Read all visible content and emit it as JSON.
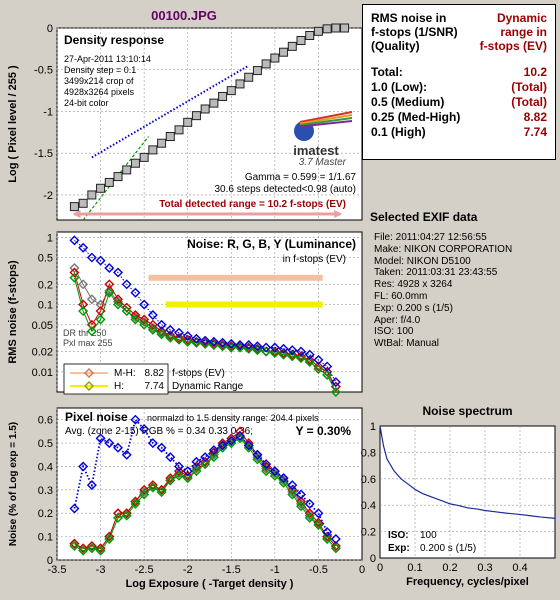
{
  "title": "00100.JPG",
  "summary": {
    "head_left": [
      "RMS noise in",
      "f-stops (1/SNR)",
      "(Quality)"
    ],
    "head_right": [
      "Dynamic",
      "range in",
      "f-stops (EV)"
    ],
    "rows": [
      {
        "label": "Total:",
        "value": "10.2"
      },
      {
        "label": "1.0  (Low):",
        "value": "(Total)"
      },
      {
        "label": "0.5  (Medium)",
        "value": "(Total)"
      },
      {
        "label": "0.25 (Med-High)",
        "value": "8.82"
      },
      {
        "label": "0.1  (High)",
        "value": "7.74"
      }
    ]
  },
  "exif": {
    "title": "Selected EXIF data",
    "lines": [
      "File:  2011:04:27 12:56:55",
      "Make:  NIKON CORPORATION",
      "Model: NIKON D5100",
      "Taken: 2011:03:31 23:43:55",
      "Res:    4928 x 3264",
      "FL:  60.0mm",
      "Exp:  0.200 s  (1/5)",
      "Aper:  f/4.0",
      "ISO:  100",
      "WtBal: Manual"
    ]
  },
  "colors": {
    "red": "#cc0000",
    "green": "#009900",
    "blue": "#0000dd",
    "gray": "#777777",
    "range_arrow": "#e8a0a0",
    "mh_band": "#f5c0a0",
    "h_band": "#f0f000",
    "dark_red": "#990000"
  },
  "chart_data": [
    {
      "type": "line",
      "title": "Density response",
      "ylabel": "Log ( Pixel level / 255 )",
      "xlim": [
        -3.5,
        0
      ],
      "ylim": [
        -2.3,
        0
      ],
      "yticks": [
        "0",
        "-0.5",
        "-1",
        "-1.5",
        "-2"
      ],
      "info": [
        "27-Apr-2011 13:10:14",
        "Density step = 0.1",
        "3499x214 crop of",
        "4928x3264 pixels",
        "24-bit color"
      ],
      "logo_text": "imatest",
      "logo_caption": "3.7  Master",
      "gamma_text": "Gamma = 0.599 = 1/1.67",
      "steps_text": "30.6 steps detected<0.98 (auto)",
      "range_text": "Total detected range = 10.2 f-stops (EV)",
      "x": [
        -3.3,
        -3.2,
        -3.1,
        -3.0,
        -2.9,
        -2.8,
        -2.7,
        -2.6,
        -2.5,
        -2.4,
        -2.3,
        -2.2,
        -2.1,
        -2.0,
        -1.9,
        -1.8,
        -1.7,
        -1.6,
        -1.5,
        -1.4,
        -1.3,
        -1.2,
        -1.1,
        -1.0,
        -0.9,
        -0.8,
        -0.7,
        -0.6,
        -0.5,
        -0.4,
        -0.3,
        -0.2
      ],
      "y": [
        -2.14,
        -2.1,
        -2.0,
        -1.92,
        -1.85,
        -1.78,
        -1.7,
        -1.62,
        -1.55,
        -1.46,
        -1.38,
        -1.3,
        -1.22,
        -1.13,
        -1.05,
        -0.97,
        -0.9,
        -0.82,
        -0.75,
        -0.67,
        -0.59,
        -0.51,
        -0.43,
        -0.36,
        -0.29,
        -0.22,
        -0.15,
        -0.09,
        -0.04,
        -0.01,
        0,
        0
      ]
    },
    {
      "type": "line",
      "title": "Noise: R, G, B, Y (Luminance)",
      "subtitle": "in f-stops (EV)",
      "ylabel": "RMS noise (f-stops)",
      "yscale": "log",
      "xlim": [
        -3.5,
        0
      ],
      "yticks": [
        "1",
        "0.5",
        "0.2",
        "0.1",
        "0.05",
        "0.02",
        "0.01"
      ],
      "dr_text": [
        "DR thr 250",
        "Pxl max 255"
      ],
      "legend": [
        {
          "label": "M-H:",
          "value": "8.82"
        },
        {
          "label": "H:",
          "value": "7.74"
        }
      ],
      "legend_note": [
        "f-stops (EV)",
        "Dynamic Range"
      ],
      "x": [
        -3.3,
        -3.2,
        -3.1,
        -3.0,
        -2.9,
        -2.8,
        -2.7,
        -2.6,
        -2.5,
        -2.4,
        -2.3,
        -2.2,
        -2.1,
        -2.0,
        -1.9,
        -1.8,
        -1.7,
        -1.6,
        -1.5,
        -1.4,
        -1.3,
        -1.2,
        -1.1,
        -1.0,
        -0.9,
        -0.8,
        -0.7,
        -0.6,
        -0.5,
        -0.4,
        -0.3
      ],
      "series": [
        {
          "name": "R",
          "values": [
            0.3,
            0.1,
            0.05,
            0.08,
            0.2,
            0.12,
            0.09,
            0.07,
            0.06,
            0.05,
            0.04,
            0.035,
            0.032,
            0.03,
            0.028,
            0.027,
            0.026,
            0.025,
            0.024,
            0.024,
            0.023,
            0.022,
            0.02,
            0.02,
            0.019,
            0.018,
            0.017,
            0.015,
            0.012,
            0.01,
            0.006
          ]
        },
        {
          "name": "G",
          "values": [
            0.25,
            0.08,
            0.04,
            0.06,
            0.15,
            0.1,
            0.08,
            0.06,
            0.05,
            0.042,
            0.036,
            0.032,
            0.03,
            0.028,
            0.027,
            0.026,
            0.025,
            0.024,
            0.023,
            0.023,
            0.022,
            0.021,
            0.02,
            0.019,
            0.018,
            0.017,
            0.016,
            0.014,
            0.011,
            0.009,
            0.005
          ]
        },
        {
          "name": "B",
          "values": [
            0.9,
            0.7,
            0.5,
            0.45,
            0.35,
            0.3,
            0.2,
            0.15,
            0.1,
            0.07,
            0.05,
            0.042,
            0.038,
            0.034,
            0.031,
            0.029,
            0.028,
            0.027,
            0.026,
            0.025,
            0.025,
            0.024,
            0.023,
            0.023,
            0.022,
            0.021,
            0.02,
            0.018,
            0.015,
            0.012,
            0.007
          ]
        },
        {
          "name": "Y",
          "values": [
            0.35,
            0.2,
            0.12,
            0.1,
            0.16,
            0.11,
            0.08,
            0.065,
            0.055,
            0.045,
            0.038,
            0.033,
            0.03,
            0.028,
            0.027,
            0.026,
            0.025,
            0.024,
            0.023,
            0.023,
            0.022,
            0.021,
            0.02,
            0.019,
            0.018,
            0.017,
            0.016,
            0.014,
            0.011,
            0.009,
            0.006
          ]
        }
      ],
      "bands": [
        {
          "name": "M-H",
          "value": 0.25
        },
        {
          "name": "H",
          "value": 0.1
        }
      ]
    },
    {
      "type": "line",
      "title": "Pixel noise",
      "subtitle": "normalzd to 1.5 density range: 204.4 pixels",
      "avg_text": "Avg. (zone 2-15) RGB % = 0.34  0.33  0.36;",
      "y_text": "Y = 0.30%",
      "xlabel": "Log Exposure ( -Target density )",
      "ylabel": "Noise (% of Log exp = 1.5)",
      "xlim": [
        -3.5,
        0
      ],
      "ylim": [
        0,
        0.65
      ],
      "xticks": [
        "-3.5",
        "-3",
        "-2.5",
        "-2",
        "-1.5",
        "-1",
        "-0.5",
        "0"
      ],
      "yticks": [
        "0.6",
        "0.5",
        "0.4",
        "0.3",
        "0.2",
        "0.1",
        "0"
      ],
      "x": [
        -3.3,
        -3.2,
        -3.1,
        -3.0,
        -2.9,
        -2.8,
        -2.7,
        -2.6,
        -2.5,
        -2.4,
        -2.3,
        -2.2,
        -2.1,
        -2.0,
        -1.9,
        -1.8,
        -1.7,
        -1.6,
        -1.5,
        -1.4,
        -1.3,
        -1.2,
        -1.1,
        -1.0,
        -0.9,
        -0.8,
        -0.7,
        -0.6,
        -0.5,
        -0.4,
        -0.3
      ],
      "series": [
        {
          "name": "R",
          "values": [
            0.07,
            0.05,
            0.06,
            0.05,
            0.1,
            0.2,
            0.2,
            0.25,
            0.3,
            0.32,
            0.3,
            0.35,
            0.38,
            0.36,
            0.4,
            0.42,
            0.46,
            0.5,
            0.52,
            0.55,
            0.5,
            0.45,
            0.4,
            0.38,
            0.35,
            0.3,
            0.25,
            0.2,
            0.16,
            0.1,
            0.06
          ]
        },
        {
          "name": "G",
          "values": [
            0.06,
            0.04,
            0.05,
            0.04,
            0.09,
            0.18,
            0.19,
            0.24,
            0.28,
            0.31,
            0.29,
            0.34,
            0.36,
            0.35,
            0.38,
            0.41,
            0.44,
            0.48,
            0.5,
            0.52,
            0.48,
            0.43,
            0.38,
            0.36,
            0.33,
            0.28,
            0.23,
            0.18,
            0.15,
            0.09,
            0.05
          ]
        },
        {
          "name": "B",
          "values": [
            0.22,
            0.4,
            0.32,
            0.52,
            0.5,
            0.48,
            0.45,
            0.6,
            0.56,
            0.5,
            0.48,
            0.44,
            0.4,
            0.38,
            0.42,
            0.44,
            0.47,
            0.49,
            0.51,
            0.53,
            0.49,
            0.45,
            0.41,
            0.38,
            0.35,
            0.32,
            0.28,
            0.24,
            0.2,
            0.12,
            0.09
          ]
        },
        {
          "name": "Y",
          "values": [
            0.07,
            0.05,
            0.05,
            0.05,
            0.1,
            0.2,
            0.2,
            0.25,
            0.29,
            0.31,
            0.3,
            0.34,
            0.37,
            0.35,
            0.39,
            0.41,
            0.45,
            0.49,
            0.5,
            0.53,
            0.49,
            0.44,
            0.39,
            0.37,
            0.34,
            0.29,
            0.24,
            0.19,
            0.15,
            0.09,
            0.05
          ]
        }
      ]
    },
    {
      "type": "line",
      "title": "Noise spectrum",
      "xlabel": "Frequency, cycles/pixel",
      "xlim": [
        0,
        0.5
      ],
      "ylim": [
        0,
        1
      ],
      "xticks": [
        "0",
        "0.1",
        "0.2",
        "0.3",
        "0.4"
      ],
      "yticks": [
        "1",
        "0.8",
        "0.6",
        "0.4",
        "0.2",
        "0"
      ],
      "iso_label": "ISO:",
      "iso_value": "100",
      "exp_label": "Exp:",
      "exp_value": "0.200 s   (1/5)",
      "x": [
        0,
        0.01,
        0.02,
        0.04,
        0.06,
        0.08,
        0.1,
        0.12,
        0.15,
        0.18,
        0.2,
        0.22,
        0.25,
        0.28,
        0.3,
        0.33,
        0.36,
        0.4,
        0.43,
        0.46,
        0.5
      ],
      "y": [
        1,
        0.85,
        0.75,
        0.66,
        0.6,
        0.56,
        0.52,
        0.49,
        0.46,
        0.43,
        0.41,
        0.4,
        0.38,
        0.37,
        0.36,
        0.35,
        0.34,
        0.33,
        0.32,
        0.31,
        0.3
      ]
    }
  ]
}
